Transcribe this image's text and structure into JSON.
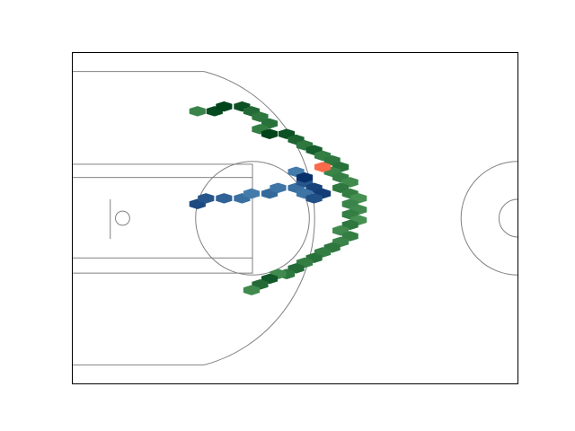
{
  "chart_data": {
    "type": "heatmap",
    "subtype": "hexbin-shot-chart",
    "title": "",
    "xlabel": "",
    "ylabel": "",
    "court": {
      "units": "feet",
      "xlim": [
        0,
        47
      ],
      "ylim": [
        0,
        35
      ],
      "elements": [
        "baseline-boundary",
        "three-point-line",
        "paint",
        "free-throw-circle",
        "backboard",
        "hoop",
        "center-circle",
        "center-inner-circle"
      ],
      "line_color": "#808080"
    },
    "series": [
      {
        "colormap": "Greens",
        "color_range": [
          "#74c476",
          "#00441b"
        ],
        "points": [
          {
            "x": 13.2,
            "y": 28.8,
            "level": 0.5
          },
          {
            "x": 15.0,
            "y": 28.8,
            "level": 0.95
          },
          {
            "x": 16.0,
            "y": 29.3,
            "level": 1.0
          },
          {
            "x": 17.9,
            "y": 29.3,
            "level": 0.9
          },
          {
            "x": 18.9,
            "y": 28.8,
            "level": 0.7
          },
          {
            "x": 19.8,
            "y": 28.2,
            "level": 0.6
          },
          {
            "x": 20.8,
            "y": 27.5,
            "level": 0.65
          },
          {
            "x": 19.8,
            "y": 26.9,
            "level": 0.55
          },
          {
            "x": 20.8,
            "y": 26.4,
            "level": 1.0
          },
          {
            "x": 22.6,
            "y": 26.4,
            "level": 0.9
          },
          {
            "x": 23.6,
            "y": 25.8,
            "level": 0.75
          },
          {
            "x": 24.5,
            "y": 25.2,
            "level": 0.6
          },
          {
            "x": 25.5,
            "y": 24.7,
            "level": 0.8
          },
          {
            "x": 26.4,
            "y": 24.1,
            "level": 0.55
          },
          {
            "x": 27.4,
            "y": 23.6,
            "level": 0.6
          },
          {
            "x": 28.3,
            "y": 22.9,
            "level": 0.65
          },
          {
            "x": 27.4,
            "y": 22.4,
            "level": 0.5
          },
          {
            "x": 28.3,
            "y": 21.8,
            "level": 0.55
          },
          {
            "x": 29.3,
            "y": 21.3,
            "level": 0.45
          },
          {
            "x": 28.3,
            "y": 20.7,
            "level": 0.6
          },
          {
            "x": 29.3,
            "y": 20.1,
            "level": 0.55
          },
          {
            "x": 30.2,
            "y": 19.6,
            "level": 0.4
          },
          {
            "x": 29.3,
            "y": 19.0,
            "level": 0.5
          },
          {
            "x": 30.2,
            "y": 18.4,
            "level": 0.45
          },
          {
            "x": 29.3,
            "y": 17.9,
            "level": 0.55
          },
          {
            "x": 30.2,
            "y": 17.3,
            "level": 0.4
          },
          {
            "x": 29.3,
            "y": 16.8,
            "level": 0.6
          },
          {
            "x": 28.3,
            "y": 16.2,
            "level": 0.45
          },
          {
            "x": 29.3,
            "y": 15.6,
            "level": 0.55
          },
          {
            "x": 28.3,
            "y": 15.0,
            "level": 0.5
          },
          {
            "x": 27.4,
            "y": 14.4,
            "level": 0.6
          },
          {
            "x": 26.4,
            "y": 13.9,
            "level": 0.55
          },
          {
            "x": 25.5,
            "y": 13.3,
            "level": 0.65
          },
          {
            "x": 24.5,
            "y": 12.8,
            "level": 0.55
          },
          {
            "x": 23.6,
            "y": 12.2,
            "level": 0.7
          },
          {
            "x": 22.6,
            "y": 11.6,
            "level": 0.6
          },
          {
            "x": 21.7,
            "y": 11.6,
            "level": 0.45
          },
          {
            "x": 20.8,
            "y": 11.1,
            "level": 0.85
          },
          {
            "x": 19.8,
            "y": 10.5,
            "level": 0.7
          },
          {
            "x": 18.9,
            "y": 9.9,
            "level": 0.45
          }
        ]
      },
      {
        "colormap": "Blues",
        "color_range": [
          "#6baed6",
          "#08306b"
        ],
        "points": [
          {
            "x": 13.2,
            "y": 19.0,
            "level": 0.8
          },
          {
            "x": 14.1,
            "y": 19.6,
            "level": 0.7
          },
          {
            "x": 16.0,
            "y": 19.6,
            "level": 0.6
          },
          {
            "x": 17.9,
            "y": 19.6,
            "level": 0.5
          },
          {
            "x": 18.9,
            "y": 20.1,
            "level": 0.4
          },
          {
            "x": 20.8,
            "y": 20.1,
            "level": 0.55
          },
          {
            "x": 21.7,
            "y": 20.7,
            "level": 0.45
          },
          {
            "x": 23.6,
            "y": 20.7,
            "level": 0.5
          },
          {
            "x": 24.5,
            "y": 21.3,
            "level": 0.7
          },
          {
            "x": 25.5,
            "y": 20.7,
            "level": 0.85
          },
          {
            "x": 26.4,
            "y": 20.1,
            "level": 0.9
          },
          {
            "x": 24.5,
            "y": 20.1,
            "level": 0.45
          },
          {
            "x": 25.5,
            "y": 19.6,
            "level": 0.75
          },
          {
            "x": 23.6,
            "y": 22.4,
            "level": 0.4
          },
          {
            "x": 24.5,
            "y": 21.8,
            "level": 1.0
          }
        ]
      },
      {
        "colormap": "Reds",
        "color_range": [
          "#fb6a4a",
          "#fb6a4a"
        ],
        "points": [
          {
            "x": 26.4,
            "y": 22.9,
            "level": 1.0
          }
        ]
      }
    ]
  }
}
